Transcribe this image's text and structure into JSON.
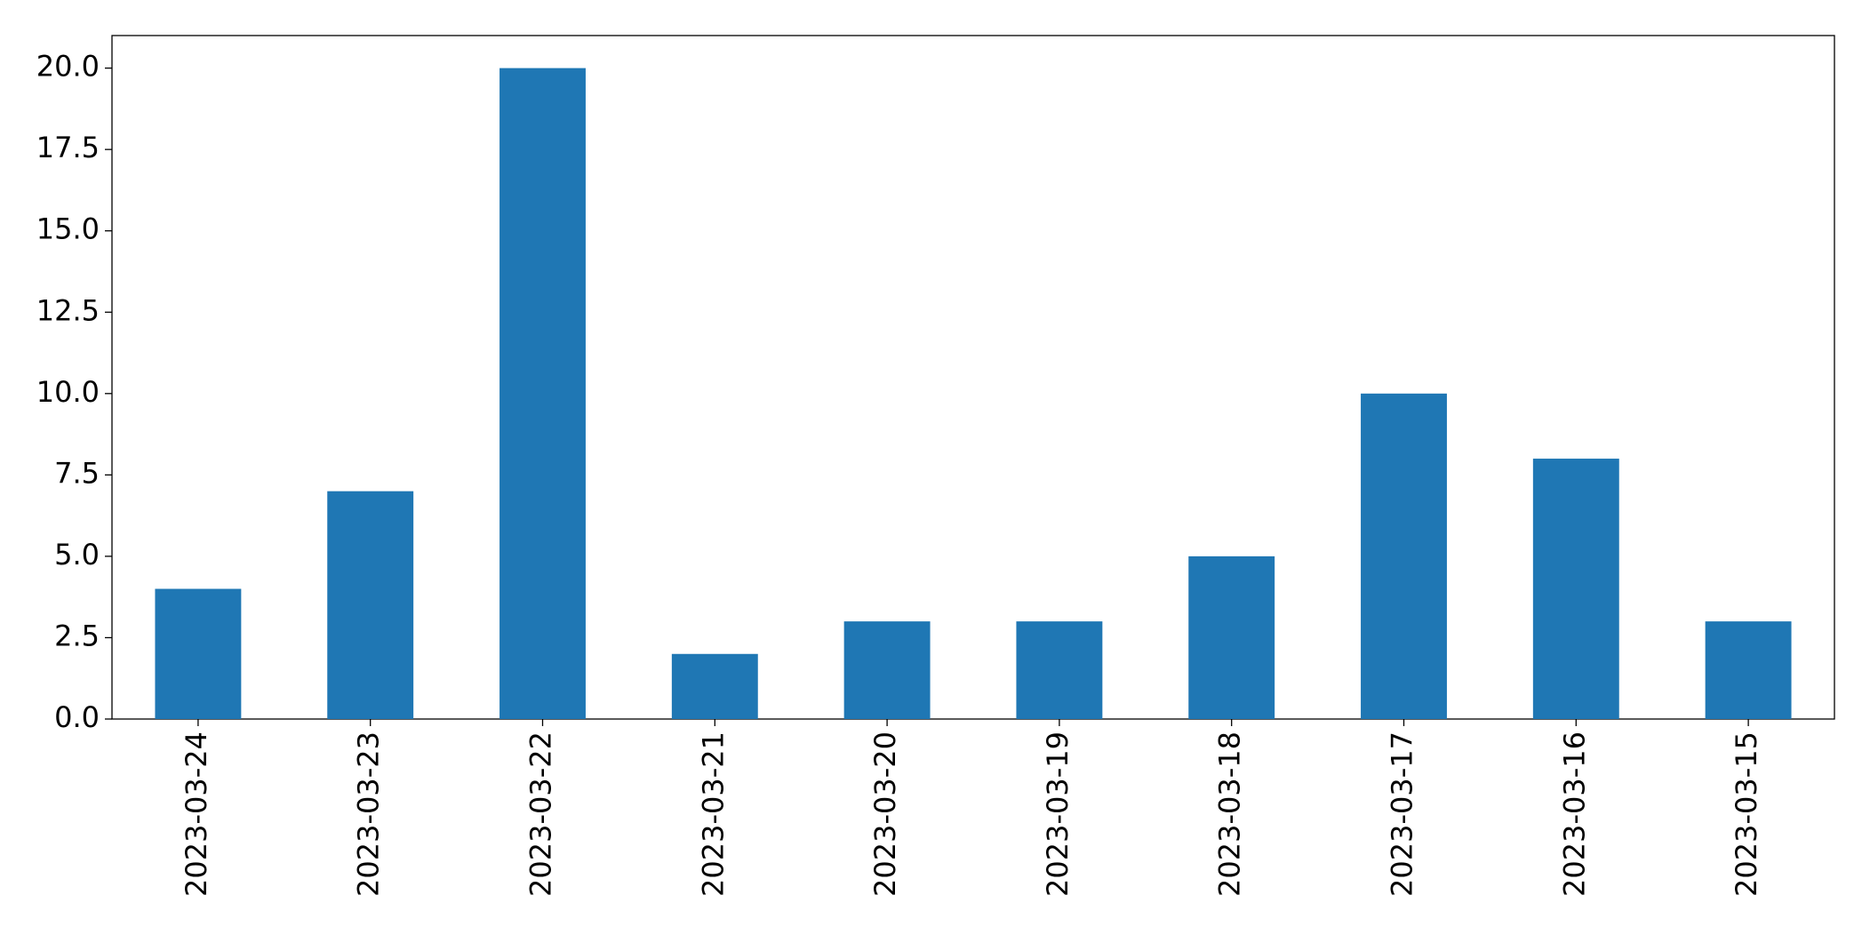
{
  "chart_data": {
    "type": "bar",
    "categories": [
      "2023-03-24",
      "2023-03-23",
      "2023-03-22",
      "2023-03-21",
      "2023-03-20",
      "2023-03-19",
      "2023-03-18",
      "2023-03-17",
      "2023-03-16",
      "2023-03-15"
    ],
    "values": [
      4,
      7,
      20,
      2,
      3,
      3,
      5,
      10,
      8,
      3
    ],
    "color": "#1f77b4",
    "ylim": [
      0,
      21
    ],
    "yticks": [
      {
        "value": 0,
        "label": "0.0"
      },
      2.5,
      {
        "value": 5,
        "label": "5.0"
      },
      7.5,
      {
        "value": 10,
        "label": "10.0"
      },
      12.5,
      {
        "value": 15,
        "label": "15.0"
      },
      17.5,
      {
        "value": 20,
        "label": "20.0"
      }
    ],
    "grid": false
  }
}
